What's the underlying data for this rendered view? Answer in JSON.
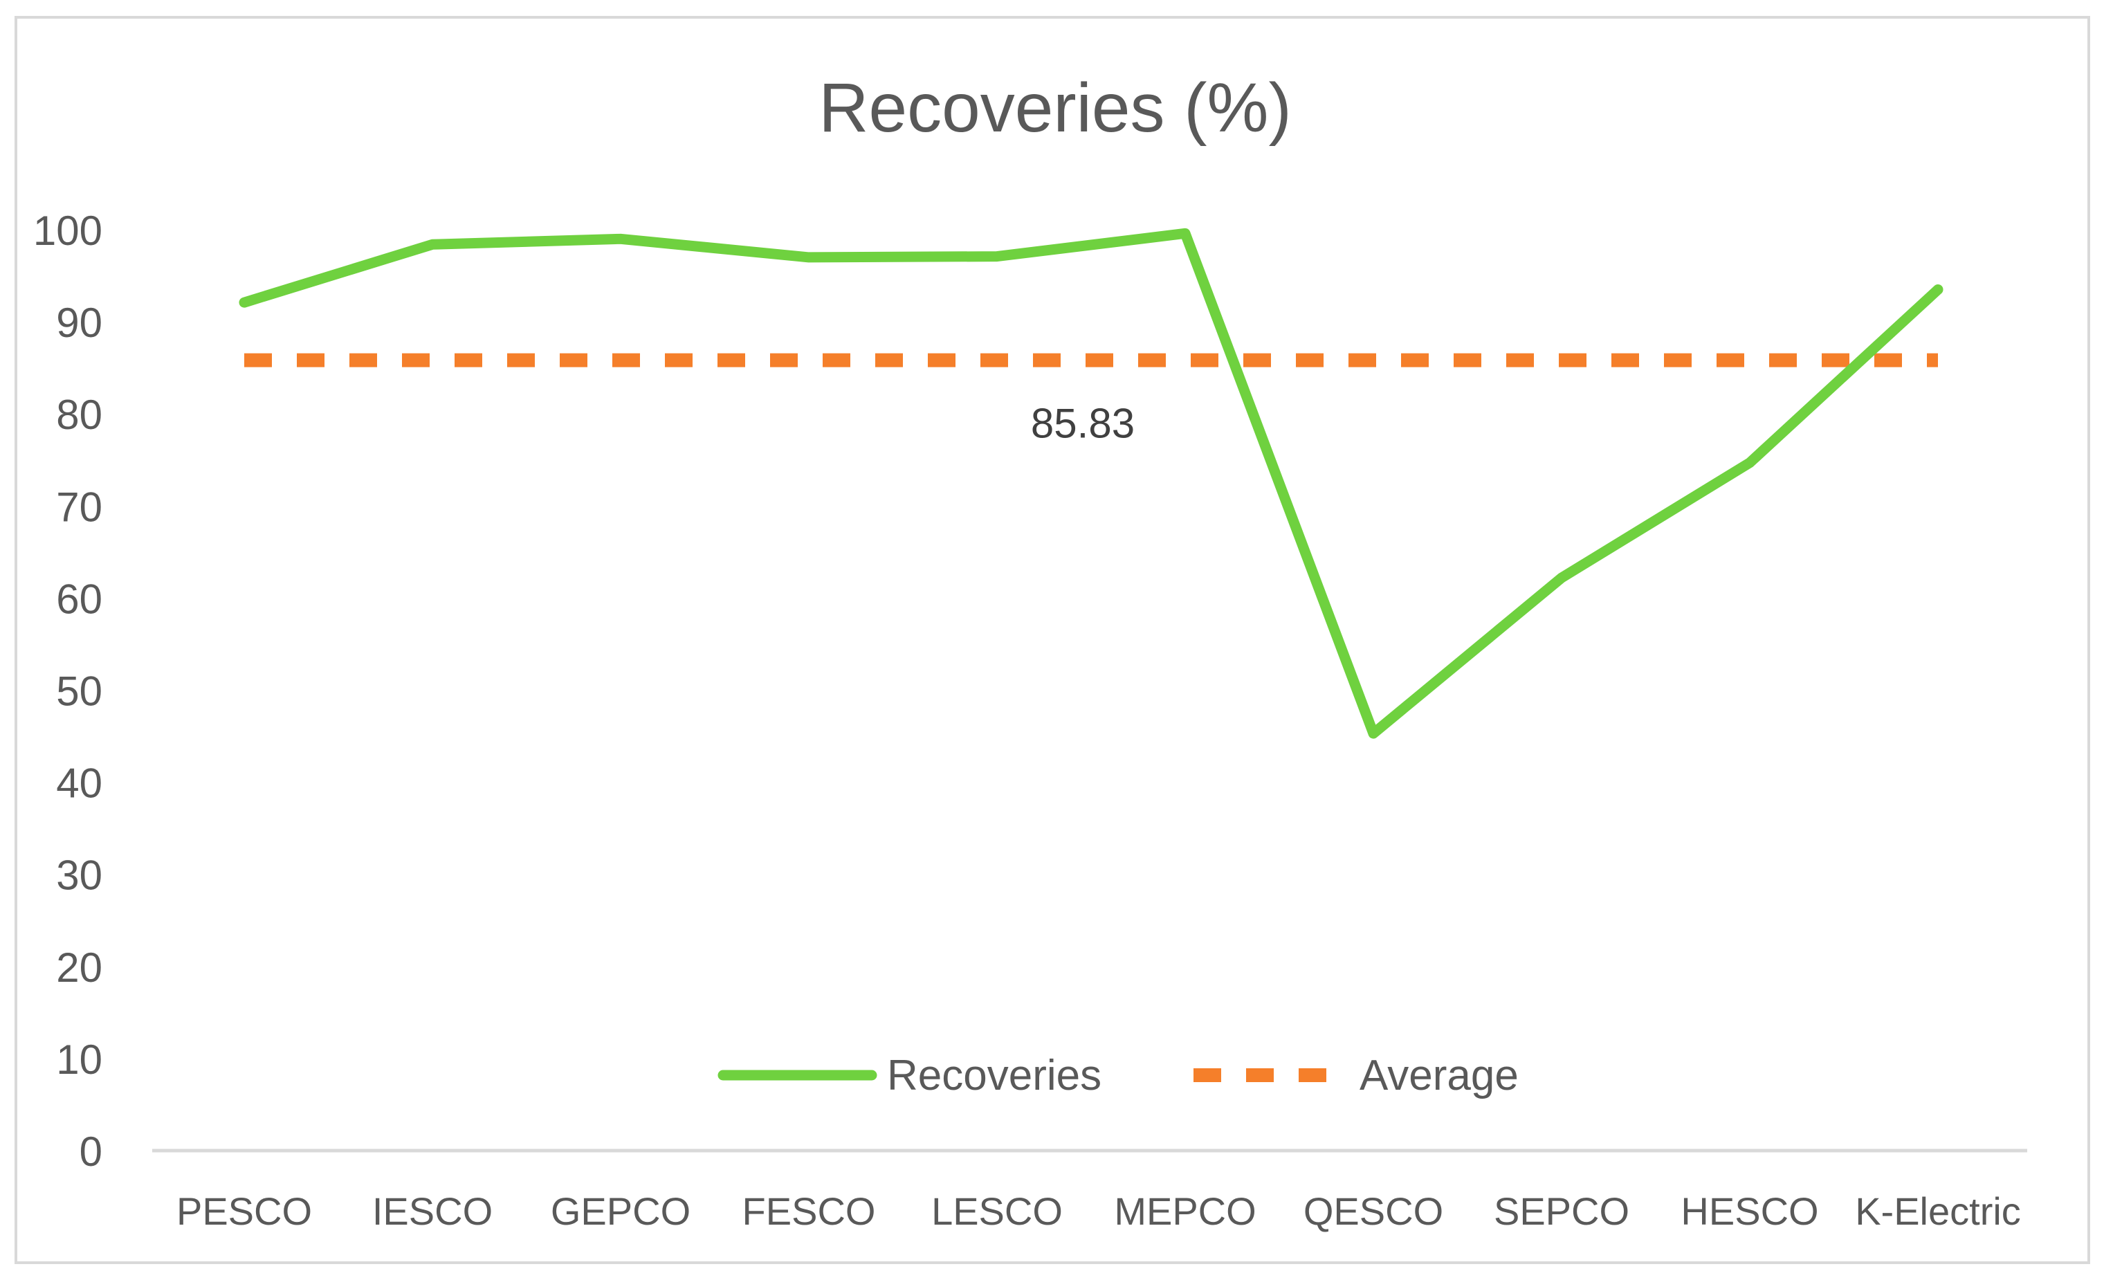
{
  "chart_data": {
    "type": "line",
    "title": "Recoveries (%)",
    "xlabel": "",
    "ylabel": "",
    "categories": [
      "PESCO",
      "IESCO",
      "GEPCO",
      "FESCO",
      "LESCO",
      "MEPCO",
      "QESCO",
      "SEPCO",
      "HESCO",
      "K-Electric"
    ],
    "ylim": [
      0,
      100
    ],
    "yticks": [
      0,
      10,
      20,
      30,
      40,
      50,
      60,
      70,
      80,
      90,
      100
    ],
    "grid": false,
    "legend_position": "bottom",
    "series": [
      {
        "name": "Recoveries",
        "color": "#6fd13f",
        "style": "solid",
        "values": [
          92.1,
          98.4,
          99.0,
          97.0,
          97.1,
          99.6,
          45.3,
          62.2,
          74.7,
          93.5
        ]
      },
      {
        "name": "Average",
        "color": "#f57f2a",
        "style": "dashed",
        "values": [
          85.83,
          85.83,
          85.83,
          85.83,
          85.83,
          85.83,
          85.83,
          85.83,
          85.83,
          85.83
        ]
      }
    ],
    "annotations": [
      {
        "text": "85.83",
        "series": "Average",
        "category": "LESCO"
      }
    ],
    "colors": {
      "axis": "#d9d9d9",
      "frame": "#d9d9d9",
      "title": "#595959",
      "tick_label": "#595959",
      "annotation": "#404040"
    }
  }
}
